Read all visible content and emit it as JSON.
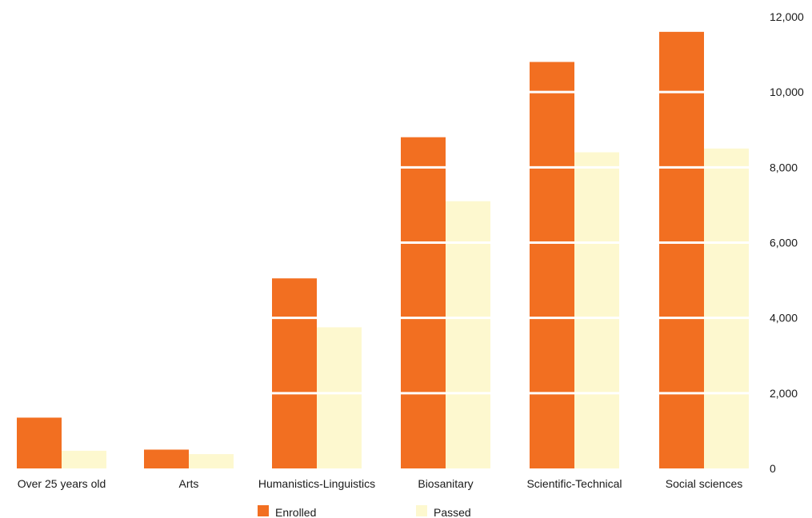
{
  "chart_data": {
    "type": "bar",
    "categories": [
      "Over 25 years old",
      "Arts",
      "Humanistics-Linguistics",
      "Biosanitary",
      "Scientific-Technical",
      "Social sciences"
    ],
    "series": [
      {
        "name": "Enrolled",
        "color": "#f26f21",
        "values": [
          1350,
          500,
          5050,
          8800,
          10800,
          11600
        ]
      },
      {
        "name": "Passed",
        "color": "#fdf8cf",
        "values": [
          470,
          380,
          3750,
          7100,
          8400,
          8500
        ]
      }
    ],
    "ylim": [
      0,
      12000
    ],
    "yticks": [
      "0",
      "2,000",
      "4,000",
      "6,000",
      "8,000",
      "10,000",
      "12,000"
    ],
    "ytick_values": [
      0,
      2000,
      4000,
      6000,
      8000,
      10000,
      12000
    ],
    "y_axis_side": "right",
    "grid": "white lines over bars",
    "legend_position": "bottom-center",
    "title": "",
    "xlabel": "",
    "ylabel": ""
  }
}
